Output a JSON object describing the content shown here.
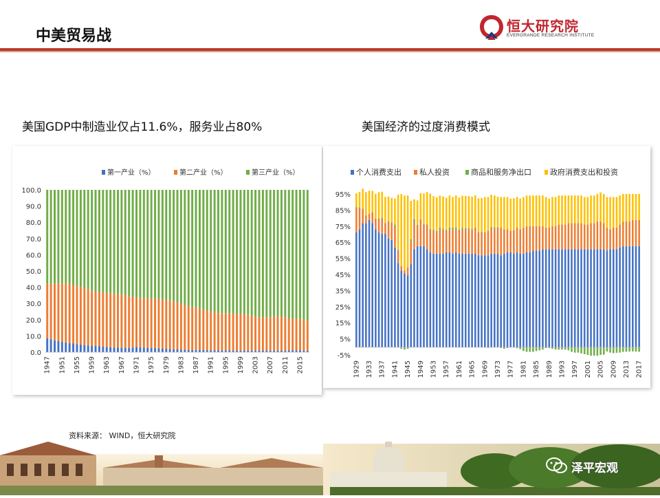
{
  "header": {
    "title": "中美贸易战",
    "logo_name": "恒大研究院",
    "logo_sub": "EVERGRANDE RESEARCH INSTITUTE",
    "brand_color": "#c0272d"
  },
  "left": {
    "subtitle": "美国GDP中制造业仅占11.6%，服务业占80%"
  },
  "right": {
    "subtitle": "美国经济的过度消费模式"
  },
  "source": "资料来源： WIND，恒大研究院",
  "watermark": "泽平宏观",
  "chart_data": [
    {
      "type": "bar",
      "stacked": true,
      "legend": "top",
      "grid": false,
      "ylim": [
        0,
        100
      ],
      "yticks": [
        "0.0",
        "10.0",
        "20.0",
        "30.0",
        "40.0",
        "50.0",
        "60.0",
        "70.0",
        "80.0",
        "90.0",
        "100.0"
      ],
      "x_start": 1947,
      "x_end": 2017,
      "x_tick_labels": [
        "1947",
        "1951",
        "1955",
        "1959",
        "1963",
        "1967",
        "1971",
        "1975",
        "1979",
        "1983",
        "1987",
        "1991",
        "1995",
        "1999",
        "2003",
        "2007",
        "2011",
        "2015"
      ],
      "series": [
        {
          "name": "第一产业（%）",
          "color": "#4472c4",
          "values": [
            8.5,
            8.0,
            7.3,
            6.8,
            6.5,
            6.0,
            5.6,
            5.3,
            5.0,
            4.7,
            4.4,
            4.2,
            4.0,
            3.8,
            3.6,
            3.4,
            3.2,
            3.0,
            2.9,
            2.8,
            2.7,
            2.7,
            2.6,
            2.9,
            3.2,
            3.0,
            2.8,
            2.7,
            2.6,
            2.5,
            2.3,
            2.2,
            2.1,
            1.9,
            1.8,
            1.7,
            1.6,
            1.5,
            1.4,
            1.3,
            1.3,
            1.3,
            1.3,
            1.2,
            1.2,
            1.2,
            1.1,
            1.1,
            1.1,
            1.1,
            1.0,
            1.0,
            1.0,
            1.0,
            1.0,
            1.0,
            1.0,
            1.0,
            1.0,
            1.0,
            1.0,
            1.0,
            1.0,
            1.0,
            1.0,
            1.1,
            1.2,
            1.2,
            1.1,
            1.0,
            0.9
          ]
        },
        {
          "name": "第二产业（%）",
          "color": "#ed7d31",
          "values": [
            33.5,
            34.0,
            35.0,
            35.5,
            36.0,
            36.5,
            36.5,
            36.0,
            35.8,
            35.5,
            35.0,
            34.5,
            34.0,
            33.5,
            33.5,
            33.5,
            33.3,
            33.2,
            33.0,
            33.0,
            32.8,
            32.5,
            32.0,
            31.0,
            30.5,
            30.3,
            30.5,
            30.5,
            30.3,
            30.5,
            30.5,
            30.5,
            30.3,
            30.0,
            29.5,
            29.0,
            28.5,
            27.5,
            27.0,
            26.5,
            26.0,
            25.5,
            25.0,
            24.5,
            24.0,
            23.5,
            23.0,
            23.0,
            23.0,
            23.0,
            22.8,
            22.5,
            22.5,
            22.3,
            22.0,
            21.5,
            21.0,
            20.5,
            20.5,
            20.5,
            20.5,
            21.0,
            21.0,
            21.0,
            20.5,
            19.5,
            19.5,
            19.5,
            19.5,
            19.0,
            18.5
          ]
        },
        {
          "name": "第三产业（%）",
          "color": "#70ad47",
          "values": "remainder_to_100"
        }
      ]
    },
    {
      "type": "bar",
      "stacked": true,
      "legend": "top",
      "grid": false,
      "ylim": [
        -5,
        100
      ],
      "yticks": [
        "-5%",
        "5%",
        "15%",
        "25%",
        "35%",
        "45%",
        "55%",
        "65%",
        "75%",
        "85%",
        "95%"
      ],
      "x_start": 1929,
      "x_end": 2017,
      "x_tick_labels": [
        "1929",
        "1933",
        "1937",
        "1941",
        "1945",
        "1949",
        "1953",
        "1957",
        "1961",
        "1965",
        "1969",
        "1973",
        "1977",
        "1981",
        "1985",
        "1989",
        "1993",
        "1997",
        "2001",
        "2005",
        "2009",
        "2013",
        "2017"
      ],
      "series": [
        {
          "name": "个人消费支出",
          "color": "#4472c4",
          "values": [
            75,
            77,
            81,
            81,
            83,
            81,
            77,
            75,
            74,
            74,
            71,
            70,
            65,
            55,
            50,
            48,
            47,
            54,
            64,
            66,
            66,
            66,
            64,
            62,
            61,
            61,
            61,
            61,
            62,
            62,
            61,
            62,
            61,
            61,
            61,
            61,
            61,
            61,
            60,
            60,
            60,
            60,
            61,
            61,
            61,
            60,
            61,
            62,
            62,
            61,
            62,
            61,
            61,
            62,
            62,
            63,
            63,
            63,
            64,
            64,
            64,
            64,
            64,
            64,
            64,
            64,
            64,
            64,
            64,
            64,
            64,
            64,
            64,
            64,
            64,
            64,
            64,
            64,
            63,
            64,
            64,
            64,
            65,
            66,
            66,
            66,
            66,
            66,
            66
          ]
        },
        {
          "name": "私人投资",
          "color": "#ed7d31",
          "values": [
            16,
            14,
            9,
            5,
            4,
            7,
            7,
            9,
            10,
            7,
            11,
            11,
            14,
            8,
            3,
            2,
            5,
            15,
            18,
            13,
            17,
            14,
            16,
            15,
            15,
            14,
            16,
            16,
            14,
            15,
            16,
            15,
            15,
            16,
            16,
            16,
            16,
            17,
            15,
            15,
            15,
            16,
            17,
            16,
            17,
            18,
            16,
            15,
            14,
            15,
            16,
            16,
            17,
            17,
            17,
            16,
            16,
            16,
            15,
            14,
            14,
            15,
            15,
            16,
            16,
            16,
            17,
            17,
            17,
            17,
            17,
            16,
            16,
            17,
            17,
            18,
            18,
            17,
            15,
            13,
            14,
            14,
            15,
            16,
            16,
            16,
            17,
            17,
            17
          ]
        },
        {
          "name": "商品和服务净出口",
          "color": "#70ad47",
          "values": [
            0.4,
            0.3,
            0.4,
            0.2,
            0.1,
            0.0,
            0.1,
            0.1,
            0.5,
            0.1,
            0.3,
            0.5,
            1.0,
            0.5,
            -1.0,
            -1.5,
            -1.0,
            1.5,
            1.5,
            0.8,
            0.5,
            0.3,
            0.2,
            0.2,
            0.6,
            0.8,
            1.0,
            0.4,
            0.5,
            1.0,
            1.0,
            1.0,
            0.7,
            0.8,
            0.7,
            0.6,
            0.2,
            0.1,
            0.1,
            0.4,
            -0.1,
            -0.4,
            0.5,
            1.0,
            0.2,
            -0.5,
            -1.0,
            -0.5,
            0.0,
            0.2,
            -0.6,
            -1.2,
            -2.5,
            -3.0,
            -3.0,
            -3.0,
            -2.5,
            -2.0,
            -1.5,
            -0.5,
            -0.5,
            -1.0,
            -1.5,
            -1.5,
            -1.5,
            -1.5,
            -2.0,
            -3.0,
            -3.5,
            -3.5,
            -4.0,
            -4.5,
            -5.0,
            -5.5,
            -5.5,
            -5.5,
            -5.0,
            -4.8,
            -2.8,
            -3.5,
            -3.8,
            -3.6,
            -3.5,
            -3.0,
            -2.9,
            -2.8,
            -2.7,
            -2.8,
            -2.9
          ]
        },
        {
          "name": "政府消费支出和投资",
          "color": "#ffc000",
          "values": [
            9,
            10,
            13,
            15,
            15,
            14,
            16,
            17,
            17,
            17,
            16,
            16,
            17,
            36,
            47,
            49,
            47,
            25,
            13,
            16,
            17,
            20,
            21,
            23,
            22,
            22,
            21,
            21,
            21,
            21,
            20,
            21,
            21,
            21,
            21,
            21,
            21,
            21,
            22,
            22,
            23,
            22,
            21,
            21,
            20,
            20,
            21,
            21,
            21,
            21,
            20,
            20,
            20,
            20,
            20,
            20,
            20,
            20,
            20,
            20,
            19,
            19,
            19,
            19,
            19,
            19,
            18,
            18,
            18,
            18,
            18,
            18,
            18,
            18,
            18,
            18,
            19,
            19,
            20,
            21,
            20,
            20,
            19,
            18,
            18,
            18,
            17,
            17,
            17
          ]
        }
      ]
    }
  ]
}
